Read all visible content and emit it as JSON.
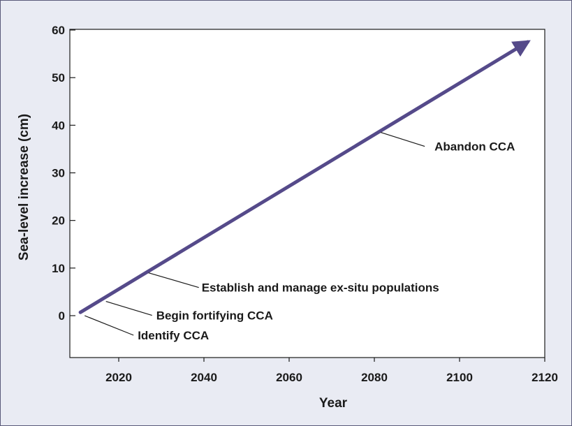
{
  "chart_data": {
    "type": "line",
    "title": "",
    "xlabel": "Year",
    "ylabel": "Sea-level increase (cm)",
    "xlim": [
      2010,
      2120
    ],
    "ylim": [
      -9,
      60
    ],
    "x_ticks": [
      2020,
      2040,
      2060,
      2080,
      2100,
      2120
    ],
    "y_ticks": [
      0,
      10,
      20,
      30,
      40,
      50,
      60
    ],
    "grid": false,
    "legend": "none",
    "series": [
      {
        "x": [
          2011,
          2116
        ],
        "y": [
          0.7,
          57.5
        ],
        "color": "#554a8a",
        "arrow_end": true
      }
    ],
    "annotations": [
      {
        "text": "Identify CCA",
        "x": 2012,
        "y": 0
      },
      {
        "text": "Begin fortifying CCA",
        "x": 2017,
        "y": 3
      },
      {
        "text": "Establish and manage ex-situ populations",
        "x": 2027,
        "y": 9
      },
      {
        "text": "Abandon CCA",
        "x": 2081.5,
        "y": 38.5
      }
    ]
  }
}
